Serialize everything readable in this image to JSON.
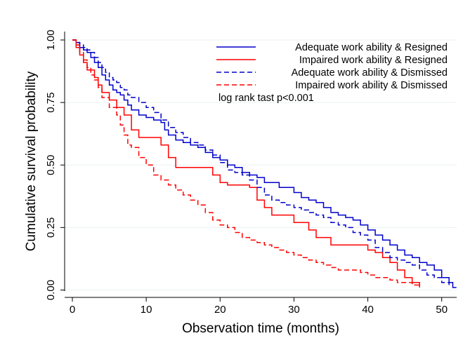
{
  "chart_data": {
    "type": "line",
    "step": true,
    "xlabel": "Observation time (months)",
    "ylabel": "Cumulative survival probability",
    "xlim": [
      0,
      52.5
    ],
    "ylim": [
      0,
      1
    ],
    "x_ticks": [
      0,
      10,
      20,
      30,
      40,
      50
    ],
    "y_ticks": [
      0,
      0.25,
      0.5,
      0.75,
      1
    ],
    "x_tick_labels": [
      "0",
      "10",
      "20",
      "30",
      "40",
      "50"
    ],
    "y_tick_labels": [
      "0.00",
      "0.25",
      "0.50",
      "0.75",
      "1.00"
    ],
    "grid": "horizontal",
    "legend_position": "top-right",
    "annotation": "log rank tast p<0.001",
    "series": [
      {
        "name": "Adequate work ability & Resigned",
        "color": "#0000cc",
        "dash": "solid",
        "x": [
          0,
          0.5,
          1,
          1.5,
          2,
          2.5,
          3,
          3.5,
          4,
          4.5,
          5,
          5.5,
          6,
          6.5,
          7,
          7.5,
          8,
          9,
          10,
          11,
          12,
          12.5,
          13,
          14,
          15,
          16,
          17,
          18,
          19,
          20,
          21,
          22,
          23,
          24,
          25,
          26,
          28,
          30,
          31,
          32,
          33,
          34,
          35,
          36,
          37,
          38,
          39,
          40,
          41,
          42,
          43,
          44,
          45,
          46,
          47,
          48,
          49,
          50,
          51,
          51.5,
          52
        ],
        "y": [
          1,
          0.99,
          0.97,
          0.96,
          0.95,
          0.93,
          0.91,
          0.89,
          0.86,
          0.84,
          0.82,
          0.8,
          0.79,
          0.78,
          0.76,
          0.74,
          0.72,
          0.7,
          0.69,
          0.68,
          0.67,
          0.64,
          0.62,
          0.6,
          0.59,
          0.58,
          0.57,
          0.55,
          0.53,
          0.52,
          0.5,
          0.49,
          0.47,
          0.46,
          0.45,
          0.43,
          0.41,
          0.39,
          0.37,
          0.36,
          0.35,
          0.33,
          0.31,
          0.3,
          0.29,
          0.28,
          0.26,
          0.24,
          0.22,
          0.2,
          0.18,
          0.16,
          0.14,
          0.13,
          0.11,
          0.1,
          0.08,
          0.05,
          0.03,
          0.01,
          0.01
        ]
      },
      {
        "name": "Impaired work ability & Resigned",
        "color": "#ff0000",
        "dash": "solid",
        "x": [
          0,
          0.5,
          1,
          1.5,
          2,
          3,
          3.5,
          4,
          5,
          6,
          7,
          8,
          9,
          12,
          13,
          14,
          19,
          20,
          21,
          23,
          24,
          25,
          26,
          27,
          30,
          32,
          33,
          35,
          38,
          40,
          41,
          42,
          43,
          44,
          45,
          46,
          47
        ],
        "y": [
          1,
          0.97,
          0.94,
          0.91,
          0.88,
          0.85,
          0.82,
          0.79,
          0.76,
          0.73,
          0.7,
          0.64,
          0.61,
          0.58,
          0.53,
          0.49,
          0.46,
          0.43,
          0.42,
          0.42,
          0.41,
          0.36,
          0.33,
          0.3,
          0.27,
          0.24,
          0.21,
          0.18,
          0.18,
          0.16,
          0.15,
          0.13,
          0.11,
          0.08,
          0.05,
          0.03,
          0.01
        ]
      },
      {
        "name": "Adequate work ability & Dismissed",
        "color": "#0000cc",
        "dash": "dashed",
        "x": [
          0,
          0.5,
          1,
          1.5,
          2,
          2.5,
          3,
          3.5,
          4,
          4.5,
          5,
          5.5,
          6,
          6.5,
          7,
          7.5,
          8,
          9,
          10,
          11,
          12,
          13,
          14,
          15,
          16,
          17,
          18,
          19,
          20,
          21,
          22,
          23,
          24,
          25,
          26,
          27,
          28,
          29,
          30,
          31,
          32,
          33,
          34,
          35,
          36,
          37,
          38,
          39,
          40,
          41,
          42,
          43,
          44,
          45,
          46,
          47,
          48,
          49,
          50,
          51
        ],
        "y": [
          1,
          0.99,
          0.98,
          0.97,
          0.96,
          0.95,
          0.93,
          0.91,
          0.89,
          0.87,
          0.85,
          0.84,
          0.83,
          0.81,
          0.8,
          0.78,
          0.77,
          0.75,
          0.73,
          0.71,
          0.68,
          0.65,
          0.63,
          0.61,
          0.59,
          0.58,
          0.56,
          0.54,
          0.51,
          0.48,
          0.47,
          0.46,
          0.44,
          0.41,
          0.38,
          0.36,
          0.35,
          0.34,
          0.33,
          0.32,
          0.31,
          0.3,
          0.29,
          0.27,
          0.26,
          0.25,
          0.23,
          0.22,
          0.2,
          0.17,
          0.15,
          0.13,
          0.12,
          0.11,
          0.1,
          0.08,
          0.06,
          0.05,
          0.03,
          0.02
        ]
      },
      {
        "name": "Impaired work ability & Dismissed",
        "color": "#ff0000",
        "dash": "dashed",
        "x": [
          0,
          0.5,
          1,
          1.5,
          2,
          2.5,
          3,
          3.5,
          4,
          5,
          6,
          6.5,
          7,
          7.5,
          8,
          9,
          10,
          11,
          12,
          13,
          14,
          15,
          16,
          17,
          18,
          19,
          20,
          21,
          22,
          23,
          24,
          25,
          26,
          27,
          28,
          29,
          30,
          31,
          32,
          33,
          34,
          35,
          36,
          37,
          38,
          39,
          40,
          41,
          42,
          43,
          44,
          45,
          46,
          47
        ],
        "y": [
          1,
          0.98,
          0.95,
          0.92,
          0.89,
          0.86,
          0.84,
          0.81,
          0.77,
          0.73,
          0.7,
          0.66,
          0.62,
          0.58,
          0.57,
          0.53,
          0.5,
          0.46,
          0.44,
          0.42,
          0.4,
          0.38,
          0.36,
          0.34,
          0.31,
          0.28,
          0.26,
          0.25,
          0.23,
          0.21,
          0.2,
          0.19,
          0.18,
          0.17,
          0.16,
          0.15,
          0.14,
          0.13,
          0.12,
          0.11,
          0.1,
          0.09,
          0.08,
          0.08,
          0.08,
          0.07,
          0.06,
          0.05,
          0.05,
          0.04,
          0.03,
          0.03,
          0.02,
          0.01
        ]
      }
    ]
  }
}
